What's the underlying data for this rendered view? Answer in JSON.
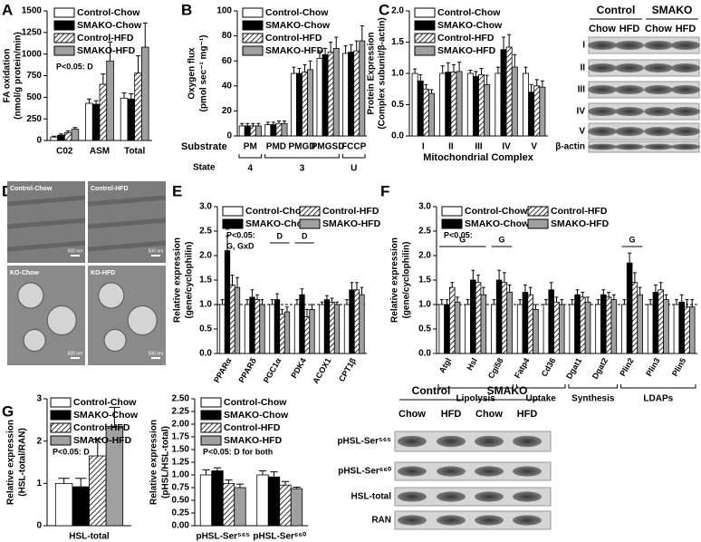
{
  "chart_data": [
    {
      "type": "bar",
      "panel": "A",
      "ylabel": [
        "FA oxidation",
        "(nmol/g protein/min)"
      ],
      "categories": [
        "C02",
        "ASM",
        "Total"
      ],
      "series": [
        {
          "name": "Control-Chow",
          "color": "#ffffff",
          "values": [
            40,
            430,
            490
          ],
          "errors": [
            10,
            50,
            60
          ]
        },
        {
          "name": "SMAKO-Chow",
          "color": "#000000",
          "values": [
            60,
            420,
            480
          ],
          "errors": [
            15,
            40,
            60
          ]
        },
        {
          "name": "Control-HFD",
          "color": "#ffffff",
          "hatch": true,
          "values": [
            90,
            650,
            780
          ],
          "errors": [
            20,
            120,
            200
          ]
        },
        {
          "name": "SMAKO-HFD",
          "color": "#a0a0a0",
          "values": [
            130,
            920,
            1080
          ],
          "errors": [
            20,
            220,
            280
          ]
        }
      ],
      "ylim": [
        0,
        1500
      ],
      "yticks": [
        0,
        250,
        500,
        750,
        1000,
        1250,
        1500
      ],
      "annotation": [
        "P<0.05: D"
      ]
    },
    {
      "type": "bar",
      "panel": "B",
      "ylabel": [
        "Oxygen flux",
        "(pmol sec⁻¹ mg⁻¹)"
      ],
      "xlabel": "Substrate",
      "categories": [
        "PM",
        "PMD",
        "PMGD",
        "PMGSD",
        "FCCP"
      ],
      "series": [
        {
          "name": "Control-Chow",
          "color": "#ffffff",
          "values": [
            8,
            9,
            50,
            62,
            66
          ],
          "errors": [
            2,
            2,
            5,
            6,
            6
          ]
        },
        {
          "name": "SMAKO-Chow",
          "color": "#000000",
          "values": [
            8,
            9,
            50,
            65,
            67
          ],
          "errors": [
            2,
            2,
            4,
            5,
            6
          ]
        },
        {
          "name": "Control-HFD",
          "color": "#ffffff",
          "hatch": true,
          "values": [
            8,
            10,
            51,
            67,
            68
          ],
          "errors": [
            2,
            2,
            6,
            8,
            8
          ]
        },
        {
          "name": "SMAKO-HFD",
          "color": "#a0a0a0",
          "values": [
            8,
            10,
            53,
            70,
            76
          ],
          "errors": [
            2,
            2,
            7,
            9,
            12
          ]
        }
      ],
      "ylim": [
        0,
        100
      ],
      "yticks": [
        0,
        20,
        40,
        60,
        80,
        100
      ],
      "group_label": "State",
      "groups": [
        {
          "label": "4",
          "categories": [
            "PM"
          ]
        },
        {
          "label": "3",
          "categories": [
            "PMD",
            "PMGD",
            "PMGSD"
          ]
        },
        {
          "label": "U",
          "categories": [
            "FCCP"
          ]
        }
      ]
    },
    {
      "type": "bar",
      "panel": "C",
      "ylabel": [
        "Protein Expression",
        "(Complex subunit/β-actin)"
      ],
      "xlabel": "Mitochondrial Complex",
      "categories": [
        "I",
        "II",
        "III",
        "IV",
        "V"
      ],
      "series": [
        {
          "name": "Control-Chow",
          "color": "#ffffff",
          "values": [
            1,
            1,
            1,
            1,
            1
          ],
          "errors": [
            0.07,
            0.12,
            0.05,
            0.1,
            0.1
          ]
        },
        {
          "name": "SMAKO-Chow",
          "color": "#000000",
          "values": [
            0.88,
            1.02,
            0.95,
            1.38,
            0.7
          ],
          "errors": [
            0.1,
            0.15,
            0.08,
            0.2,
            0.12
          ]
        },
        {
          "name": "Control-HFD",
          "color": "#ffffff",
          "hatch": true,
          "values": [
            0.75,
            1.02,
            0.98,
            1.42,
            0.8
          ],
          "errors": [
            0.07,
            0.12,
            0.1,
            0.2,
            0.1
          ]
        },
        {
          "name": "SMAKO-HFD",
          "color": "#a0a0a0",
          "values": [
            0.68,
            1.03,
            0.82,
            1.1,
            0.78
          ],
          "errors": [
            0.06,
            0.15,
            0.15,
            0.2,
            0.1
          ]
        }
      ],
      "ylim": [
        0,
        2
      ],
      "yticks": [
        {
          "value": 0,
          "label": "0.0"
        },
        {
          "value": 0.5,
          "label": "0.5"
        },
        {
          "value": 1,
          "label": "1.0"
        },
        {
          "value": 1.5,
          "label": "1.5"
        },
        {
          "value": 2,
          "label": "2.0"
        }
      ]
    },
    {
      "type": "bar",
      "panel": "E",
      "ylabel": [
        "Relative expression",
        "(gene/cyclophilin)"
      ],
      "categories": [
        "PPARα",
        "PPARδ",
        "PGC1α",
        "PDK4",
        "ACOX1",
        "CPT1β"
      ],
      "series": [
        {
          "name": "Control-Chow",
          "color": "#ffffff",
          "values": [
            1,
            1,
            1,
            1,
            1,
            1
          ],
          "errors": [
            0.1,
            0.1,
            0.1,
            0.1,
            0.05,
            0.1
          ]
        },
        {
          "name": "SMAKO-Chow",
          "color": "#000000",
          "values": [
            2.1,
            1.15,
            1.1,
            1.2,
            1.1,
            1.3
          ],
          "errors": [
            0.3,
            0.15,
            0.12,
            0.12,
            0.08,
            0.15
          ]
        },
        {
          "name": "Control-HFD",
          "color": "#ffffff",
          "hatch": true,
          "values": [
            1.4,
            1.1,
            0.8,
            0.75,
            1.05,
            1.3
          ],
          "errors": [
            0.2,
            0.1,
            0.1,
            0.15,
            0.08,
            0.15
          ]
        },
        {
          "name": "SMAKO-HFD",
          "color": "#a0a0a0",
          "values": [
            1.35,
            1,
            0.85,
            0.9,
            1,
            1.2
          ],
          "errors": [
            0.2,
            0.1,
            0.1,
            0.1,
            0.05,
            0.15
          ]
        }
      ],
      "ylim": [
        0,
        3
      ],
      "yticks": [
        {
          "value": 0,
          "label": "0.0"
        },
        {
          "value": 0.5,
          "label": "0.5"
        },
        {
          "value": 1,
          "label": "1.0"
        },
        {
          "value": 1.5,
          "label": "1.5"
        },
        {
          "value": 2,
          "label": "2.0"
        },
        {
          "value": 2.5,
          "label": "2.5"
        },
        {
          "value": 3,
          "label": "3.0"
        }
      ],
      "legend_columns": 2,
      "reference_line": 1,
      "annotation": [
        "P<0.05:",
        "G, GxD"
      ],
      "brackets": [
        {
          "label": "D",
          "categories": [
            "PGC1α"
          ]
        },
        {
          "label": "D",
          "categories": [
            "PDK4"
          ]
        }
      ],
      "markers": [
        {
          "label": "*",
          "category": "PPARα",
          "series": "SMAKO-Chow"
        }
      ]
    },
    {
      "type": "bar",
      "panel": "F",
      "ylabel": [
        "Relative expression",
        "(gene/cyclophilin)"
      ],
      "categories": [
        "Atgl",
        "Hsl",
        "Cgi58",
        "Fatp4",
        "Cd36",
        "Dgat1",
        "Dgat2",
        "Plin2",
        "Plin3",
        "Plin5"
      ],
      "series": [
        {
          "name": "Control-Chow",
          "color": "#ffffff",
          "values": [
            1,
            1,
            1,
            1,
            1,
            1,
            1,
            1,
            1,
            1
          ],
          "errors": [
            0.1,
            0.1,
            0.1,
            0.1,
            0.1,
            0.1,
            0.1,
            0.1,
            0.1,
            0.1
          ]
        },
        {
          "name": "SMAKO-Chow",
          "color": "#000000",
          "values": [
            1,
            1.5,
            1.5,
            1.25,
            1.3,
            1.2,
            1.2,
            1.85,
            1.25,
            1.05
          ],
          "errors": [
            0.1,
            0.2,
            0.2,
            0.15,
            0.15,
            0.1,
            0.1,
            0.2,
            0.15,
            0.15
          ]
        },
        {
          "name": "Control-HFD",
          "color": "#ffffff",
          "hatch": true,
          "values": [
            1.35,
            1.45,
            1.45,
            1.2,
            1.05,
            1.15,
            1.15,
            1.45,
            1.3,
            0.95
          ],
          "errors": [
            0.1,
            0.15,
            0.2,
            0.15,
            0.1,
            0.1,
            0.1,
            0.2,
            0.15,
            0.15
          ]
        },
        {
          "name": "SMAKO-HFD",
          "color": "#a0a0a0",
          "values": [
            1.05,
            1.2,
            1.25,
            0.9,
            1,
            1.05,
            1.1,
            1.2,
            1.1,
            0.95
          ],
          "errors": [
            0.1,
            0.15,
            0.15,
            0.1,
            0.1,
            0.1,
            0.1,
            0.15,
            0.1,
            0.15
          ]
        }
      ],
      "ylim": [
        0,
        3
      ],
      "yticks": [
        {
          "value": 0,
          "label": "0.0"
        },
        {
          "value": 0.5,
          "label": "0.5"
        },
        {
          "value": 1,
          "label": "1.0"
        },
        {
          "value": 1.5,
          "label": "1.5"
        },
        {
          "value": 2,
          "label": "2.0"
        },
        {
          "value": 2.5,
          "label": "2.5"
        },
        {
          "value": 3,
          "label": "3.0"
        }
      ],
      "legend_columns": 2,
      "reference_line": 1,
      "annotation": [
        "P<0.05:"
      ],
      "brackets": [
        {
          "label": "G",
          "categories": [
            "Atgl",
            "Hsl"
          ]
        },
        {
          "label": "G",
          "categories": [
            "Cgi58"
          ]
        },
        {
          "label": "G",
          "categories": [
            "Plin2"
          ]
        }
      ],
      "groups": [
        {
          "label": "Lipolysis",
          "categories": [
            "Atgl",
            "Hsl",
            "Cgi58"
          ]
        },
        {
          "label": "Uptake",
          "categories": [
            "Fatp4",
            "Cd36"
          ]
        },
        {
          "label": "Synthesis",
          "categories": [
            "Dgat1",
            "Dgat2"
          ]
        },
        {
          "label": "LDAPs",
          "categories": [
            "Plin2",
            "Plin3",
            "Plin5"
          ]
        }
      ]
    },
    {
      "type": "bar",
      "panel": "G",
      "ylabel": [
        "Relative expression",
        "(HSL-total/RAN)"
      ],
      "categories": [
        "HSL-total"
      ],
      "series": [
        {
          "name": "Control-Chow",
          "color": "#ffffff",
          "values": [
            1
          ],
          "errors": [
            0.12
          ]
        },
        {
          "name": "SMAKO-Chow",
          "color": "#000000",
          "values": [
            0.92
          ],
          "errors": [
            0.2
          ]
        },
        {
          "name": "Control-HFD",
          "color": "#ffffff",
          "hatch": true,
          "values": [
            1.65
          ],
          "errors": [
            0.4
          ]
        },
        {
          "name": "SMAKO-HFD",
          "color": "#a0a0a0",
          "values": [
            2.35
          ],
          "errors": [
            0.45
          ]
        }
      ],
      "ylim": [
        0,
        3
      ],
      "yticks": [
        0,
        1,
        2,
        3
      ],
      "annotation": [
        "P<0.05: D"
      ]
    },
    {
      "type": "bar",
      "ylabel": [
        "Relative expression",
        "(pHSL/HSL-total)"
      ],
      "categories": [
        "pHSL-Ser⁵⁶⁵",
        "pHSL-Ser⁶⁶⁰"
      ],
      "series": [
        {
          "name": "Control-Chow",
          "color": "#ffffff",
          "values": [
            1,
            1
          ],
          "errors": [
            0.1,
            0.08
          ]
        },
        {
          "name": "SMAKO-Chow",
          "color": "#000000",
          "values": [
            1.08,
            0.96
          ],
          "errors": [
            0.06,
            0.1
          ]
        },
        {
          "name": "Control-HFD",
          "color": "#ffffff",
          "hatch": true,
          "values": [
            0.83,
            0.8
          ],
          "errors": [
            0.07,
            0.07
          ]
        },
        {
          "name": "SMAKO-HFD",
          "color": "#a0a0a0",
          "values": [
            0.75,
            0.73
          ],
          "errors": [
            0.07,
            0.03
          ]
        }
      ],
      "ylim": [
        0,
        2.5
      ],
      "yticks": [
        {
          "value": 0,
          "label": "0.00"
        },
        {
          "value": 0.25,
          "label": "0.25"
        },
        {
          "value": 0.5,
          "label": "0.50"
        },
        {
          "value": 0.75,
          "label": "0.75"
        },
        {
          "value": 1,
          "label": "1.00"
        },
        {
          "value": 1.25,
          "label": "1.25"
        },
        {
          "value": 1.5,
          "label": "1.50"
        },
        {
          "value": 1.75,
          "label": "1.75"
        },
        {
          "value": 2,
          "label": "2.00"
        },
        {
          "value": 2.25,
          "label": "2.25"
        },
        {
          "value": 2.5,
          "label": "2.50"
        }
      ],
      "annotation": [
        "P<0.05: D for both"
      ]
    }
  ],
  "blots": [
    {
      "groups": [
        "Control",
        "SMAKO"
      ],
      "columns": [
        "Chow",
        "HFD",
        "Chow",
        "HFD"
      ],
      "rows": [
        "I",
        "II",
        "III",
        "IV",
        "V",
        "β-actin"
      ]
    },
    {
      "groups": [
        "Control",
        "SMAKO"
      ],
      "columns": [
        "Chow",
        "HFD",
        "Chow",
        "HFD"
      ],
      "rows": [
        "pHSL-Ser⁵⁶⁵",
        "pHSL-Ser⁶⁶⁰",
        "HSL-total",
        "RAN"
      ]
    }
  ],
  "micrographs": {
    "panel": "D",
    "labels": [
      "Control-Chow",
      "Control-HFD",
      "KO-Chow",
      "KO-HFD"
    ],
    "scale_label": "500 nm"
  }
}
